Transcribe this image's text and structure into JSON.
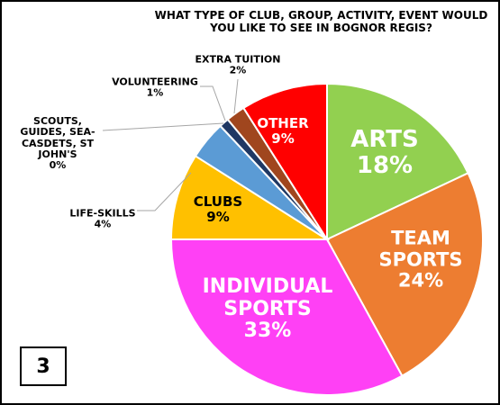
{
  "chart_data": {
    "type": "pie",
    "title": "WHAT TYPE OF CLUB, GROUP, ACTIVITY, EVENT WOULD YOU LIKE TO SEE IN BOGNOR REGIS?",
    "categories": [
      "ARTS",
      "TEAM SPORTS",
      "INDIVIDUAL SPORTS",
      "CLUBS",
      "LIFE-SKILLS",
      "SCOUTS, GUIDES, SEA-CASDETS, ST JOHN'S",
      "VOLUNTEERING",
      "EXTRA TUITION",
      "OTHER"
    ],
    "values": [
      18,
      24,
      33,
      9,
      4,
      0,
      1,
      2,
      9
    ],
    "value_labels": [
      "18%",
      "24%",
      "33%",
      "9%",
      "4%",
      "0%",
      "1%",
      "2%",
      "9%"
    ],
    "colors": [
      "#92d050",
      "#ed7d31",
      "#ff40f5",
      "#ffc000",
      "#5b9bd5",
      "#9dc3e6",
      "#1f3864",
      "#a0461e",
      "#ff0000"
    ],
    "annotation": "3"
  }
}
